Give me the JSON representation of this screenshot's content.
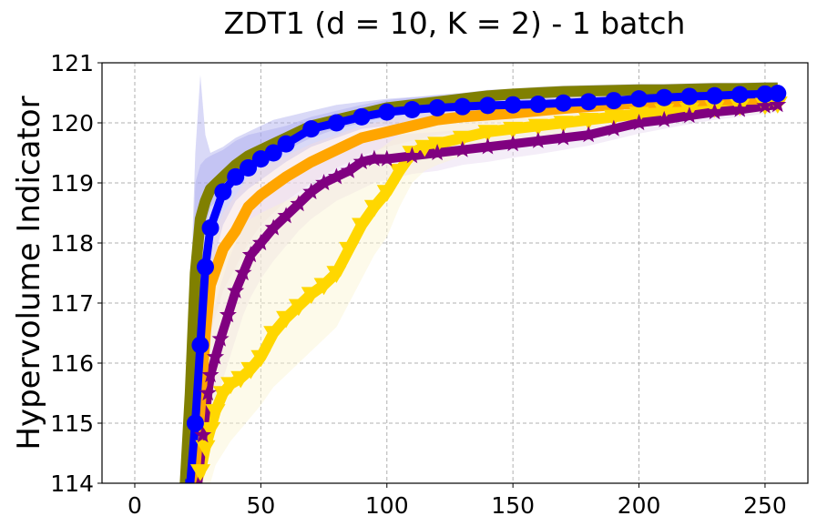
{
  "chart_data": {
    "type": "line",
    "title": "ZDT1 (d = 10, K = 2) - 1 batch",
    "xlabel": "",
    "ylabel": "Hypervolume Indicator",
    "xlim": [
      -13,
      267
    ],
    "ylim": [
      114,
      121
    ],
    "xticks": [
      0,
      50,
      100,
      150,
      200,
      250
    ],
    "yticks": [
      114,
      115,
      116,
      117,
      118,
      119,
      120,
      121
    ],
    "grid": true,
    "series": [
      {
        "name": "olive",
        "color": "#808000",
        "marker": "none",
        "band_color": "#aaaaee",
        "x": [
          20,
          22,
          24,
          26,
          28,
          30,
          35,
          40,
          45,
          50,
          55,
          60,
          70,
          80,
          90,
          100,
          110,
          120,
          130,
          140,
          150,
          160,
          170,
          180,
          190,
          200,
          210,
          220,
          230,
          240,
          250,
          255
        ],
        "y": [
          114,
          115.5,
          117.5,
          118.4,
          118.7,
          118.9,
          119.1,
          119.3,
          119.45,
          119.55,
          119.65,
          119.75,
          119.95,
          120.05,
          120.15,
          120.25,
          120.3,
          120.35,
          120.4,
          120.45,
          120.48,
          120.5,
          120.52,
          120.53,
          120.54,
          120.55,
          120.55,
          120.56,
          120.57,
          120.57,
          120.58,
          120.58
        ],
        "lower": [
          114,
          114.5,
          116.8,
          117.9,
          118.3,
          118.6,
          118.8,
          119.0,
          119.2,
          119.35,
          119.45,
          119.55,
          119.75,
          119.9,
          120.0,
          120.1,
          120.15,
          120.2,
          120.25,
          120.3,
          120.35,
          120.38,
          120.4,
          120.42,
          120.43,
          120.44,
          120.45,
          120.46,
          120.47,
          120.47,
          120.48,
          120.48
        ],
        "upper": [
          114,
          116.5,
          119.0,
          119.3,
          119.4,
          119.45,
          119.55,
          119.7,
          119.8,
          119.85,
          119.9,
          119.95,
          120.1,
          120.2,
          120.3,
          120.38,
          120.42,
          120.47,
          120.5,
          120.55,
          120.57,
          120.6,
          120.62,
          120.63,
          120.64,
          120.65,
          120.65,
          120.66,
          120.67,
          120.67,
          120.68,
          120.68
        ]
      },
      {
        "name": "blue",
        "color": "#0000ff",
        "marker": "circle",
        "band_color": "#aaaaee",
        "x": [
          20,
          22,
          24,
          26,
          28,
          30,
          35,
          40,
          45,
          50,
          55,
          60,
          70,
          80,
          90,
          100,
          110,
          120,
          130,
          140,
          150,
          160,
          170,
          180,
          190,
          200,
          210,
          220,
          230,
          240,
          250,
          255
        ],
        "y": [
          114,
          114,
          115.0,
          116.3,
          117.6,
          118.25,
          118.85,
          119.1,
          119.25,
          119.4,
          119.5,
          119.65,
          119.9,
          120.0,
          120.1,
          120.18,
          120.22,
          120.25,
          120.27,
          120.29,
          120.3,
          120.31,
          120.33,
          120.35,
          120.37,
          120.4,
          120.42,
          120.44,
          120.45,
          120.47,
          120.48,
          120.49
        ],
        "lower": [
          114,
          114,
          114,
          115.0,
          116.5,
          117.5,
          118.3,
          118.7,
          118.9,
          119.05,
          119.2,
          119.35,
          119.6,
          119.75,
          119.9,
          119.95,
          120.0,
          120.05,
          120.08,
          120.1,
          120.12,
          120.14,
          120.16,
          120.2,
          120.24,
          120.3,
          120.33,
          120.36,
          120.38,
          120.4,
          120.42,
          120.43
        ],
        "upper": [
          114,
          117.0,
          119.5,
          120.8,
          119.8,
          119.5,
          119.6,
          119.75,
          119.85,
          119.95,
          120.05,
          120.1,
          120.2,
          120.3,
          120.35,
          120.4,
          120.43,
          120.45,
          120.47,
          120.49,
          120.5,
          120.51,
          120.52,
          120.53,
          120.54,
          120.55,
          120.56,
          120.57,
          120.57,
          120.58,
          120.58,
          120.58
        ]
      },
      {
        "name": "orange",
        "color": "#ffa500",
        "marker": "none",
        "band_color": "#f5dcdc",
        "x": [
          22,
          24,
          26,
          28,
          30,
          35,
          40,
          45,
          50,
          55,
          60,
          70,
          80,
          90,
          100,
          110,
          120,
          130,
          140,
          150,
          160,
          170,
          180,
          190,
          200,
          210,
          220,
          230,
          240,
          250,
          255
        ],
        "y": [
          114,
          114.3,
          115.3,
          116.5,
          117.3,
          117.9,
          118.2,
          118.6,
          118.8,
          118.95,
          119.1,
          119.35,
          119.55,
          119.75,
          119.85,
          119.95,
          120.05,
          120.1,
          120.13,
          120.16,
          120.2,
          120.24,
          120.27,
          120.3,
          120.33,
          120.35,
          120.36,
          120.38,
          120.39,
          120.4,
          120.4
        ],
        "lower": [
          114,
          114,
          114.5,
          115.7,
          116.5,
          117.2,
          117.6,
          118.0,
          118.3,
          118.5,
          118.7,
          119.0,
          119.25,
          119.45,
          119.6,
          119.7,
          119.8,
          119.85,
          119.9,
          119.95,
          120.0,
          120.05,
          120.1,
          120.15,
          120.2,
          120.22,
          120.24,
          120.26,
          120.28,
          120.3,
          120.3
        ],
        "upper": [
          114,
          115.0,
          116.2,
          117.3,
          118.0,
          118.5,
          118.8,
          119.1,
          119.25,
          119.35,
          119.45,
          119.65,
          119.8,
          119.95,
          120.05,
          120.15,
          120.23,
          120.28,
          120.32,
          120.36,
          120.4,
          120.42,
          120.44,
          120.46,
          120.47,
          120.48,
          120.49,
          120.5,
          120.5,
          120.51,
          120.51
        ]
      },
      {
        "name": "purple",
        "color": "#800080",
        "marker": "star",
        "band_color": "#e6d8f0",
        "x": [
          25,
          27,
          29,
          30,
          32,
          34,
          37,
          40,
          43,
          46,
          50,
          55,
          60,
          65,
          70,
          75,
          80,
          85,
          90,
          95,
          100,
          110,
          120,
          130,
          140,
          150,
          160,
          170,
          180,
          190,
          200,
          210,
          220,
          230,
          240,
          250,
          255
        ],
        "y": [
          114,
          114.8,
          115.5,
          115.8,
          116.1,
          116.4,
          116.8,
          117.2,
          117.5,
          117.8,
          118.0,
          118.25,
          118.45,
          118.65,
          118.85,
          119.0,
          119.1,
          119.2,
          119.35,
          119.4,
          119.4,
          119.45,
          119.5,
          119.55,
          119.6,
          119.65,
          119.7,
          119.75,
          119.8,
          119.9,
          120.0,
          120.05,
          120.12,
          120.18,
          120.22,
          120.28,
          120.3
        ],
        "lower": [
          114,
          114,
          114.5,
          115.0,
          115.3,
          115.6,
          116.0,
          116.4,
          116.8,
          117.1,
          117.4,
          117.7,
          117.95,
          118.2,
          118.4,
          118.55,
          118.7,
          118.8,
          118.9,
          119.0,
          119.05,
          119.15,
          119.2,
          119.3,
          119.35,
          119.42,
          119.48,
          119.55,
          119.62,
          119.72,
          119.82,
          119.9,
          119.98,
          120.05,
          120.1,
          120.15,
          120.18
        ],
        "upper": [
          114,
          115.6,
          116.5,
          116.7,
          117.0,
          117.3,
          117.7,
          118.0,
          118.3,
          118.5,
          118.7,
          118.9,
          119.05,
          119.2,
          119.35,
          119.45,
          119.55,
          119.62,
          119.7,
          119.75,
          119.78,
          119.82,
          119.85,
          119.88,
          119.92,
          119.95,
          119.98,
          120.02,
          120.06,
          120.12,
          120.18,
          120.22,
          120.28,
          120.32,
          120.36,
          120.4,
          120.42
        ]
      },
      {
        "name": "gold",
        "color": "#ffd700",
        "marker": "triangle-down",
        "band_color": "#fbf5d0",
        "x": [
          24,
          26,
          28,
          30,
          32,
          35,
          38,
          42,
          46,
          50,
          55,
          60,
          65,
          70,
          75,
          80,
          85,
          90,
          95,
          100,
          105,
          110,
          115,
          120,
          130,
          140,
          150,
          160,
          170,
          180,
          190,
          200,
          210,
          220,
          230,
          240,
          250,
          255
        ],
        "y": [
          114,
          114.2,
          114.6,
          114.9,
          115.2,
          115.5,
          115.65,
          115.75,
          115.9,
          116.1,
          116.5,
          116.75,
          116.95,
          117.15,
          117.3,
          117.5,
          117.9,
          118.3,
          118.6,
          118.85,
          119.2,
          119.5,
          119.6,
          119.65,
          119.75,
          119.85,
          119.9,
          119.95,
          120.0,
          120.05,
          120.1,
          120.15,
          120.2,
          120.22,
          120.25,
          120.28,
          120.3,
          120.32
        ],
        "lower": [
          114,
          114,
          114,
          114.0,
          114.3,
          114.5,
          114.7,
          114.9,
          115.1,
          115.3,
          115.6,
          115.8,
          116.0,
          116.2,
          116.4,
          116.6,
          117.0,
          117.4,
          117.8,
          118.1,
          118.6,
          119.0,
          119.2,
          119.3,
          119.45,
          119.55,
          119.65,
          119.75,
          119.82,
          119.9,
          119.95,
          120.0,
          120.05,
          120.08,
          120.12,
          120.15,
          120.18,
          120.2
        ],
        "upper": [
          114,
          115.4,
          116.5,
          117.2,
          117.6,
          118.0,
          118.2,
          118.3,
          118.4,
          118.5,
          118.6,
          118.7,
          118.8,
          118.9,
          119.0,
          119.1,
          119.2,
          119.35,
          119.5,
          119.65,
          119.8,
          119.9,
          119.95,
          120.0,
          120.05,
          120.1,
          120.15,
          120.18,
          120.22,
          120.25,
          120.28,
          120.3,
          120.33,
          120.36,
          120.38,
          120.4,
          120.42,
          120.44
        ]
      }
    ]
  }
}
